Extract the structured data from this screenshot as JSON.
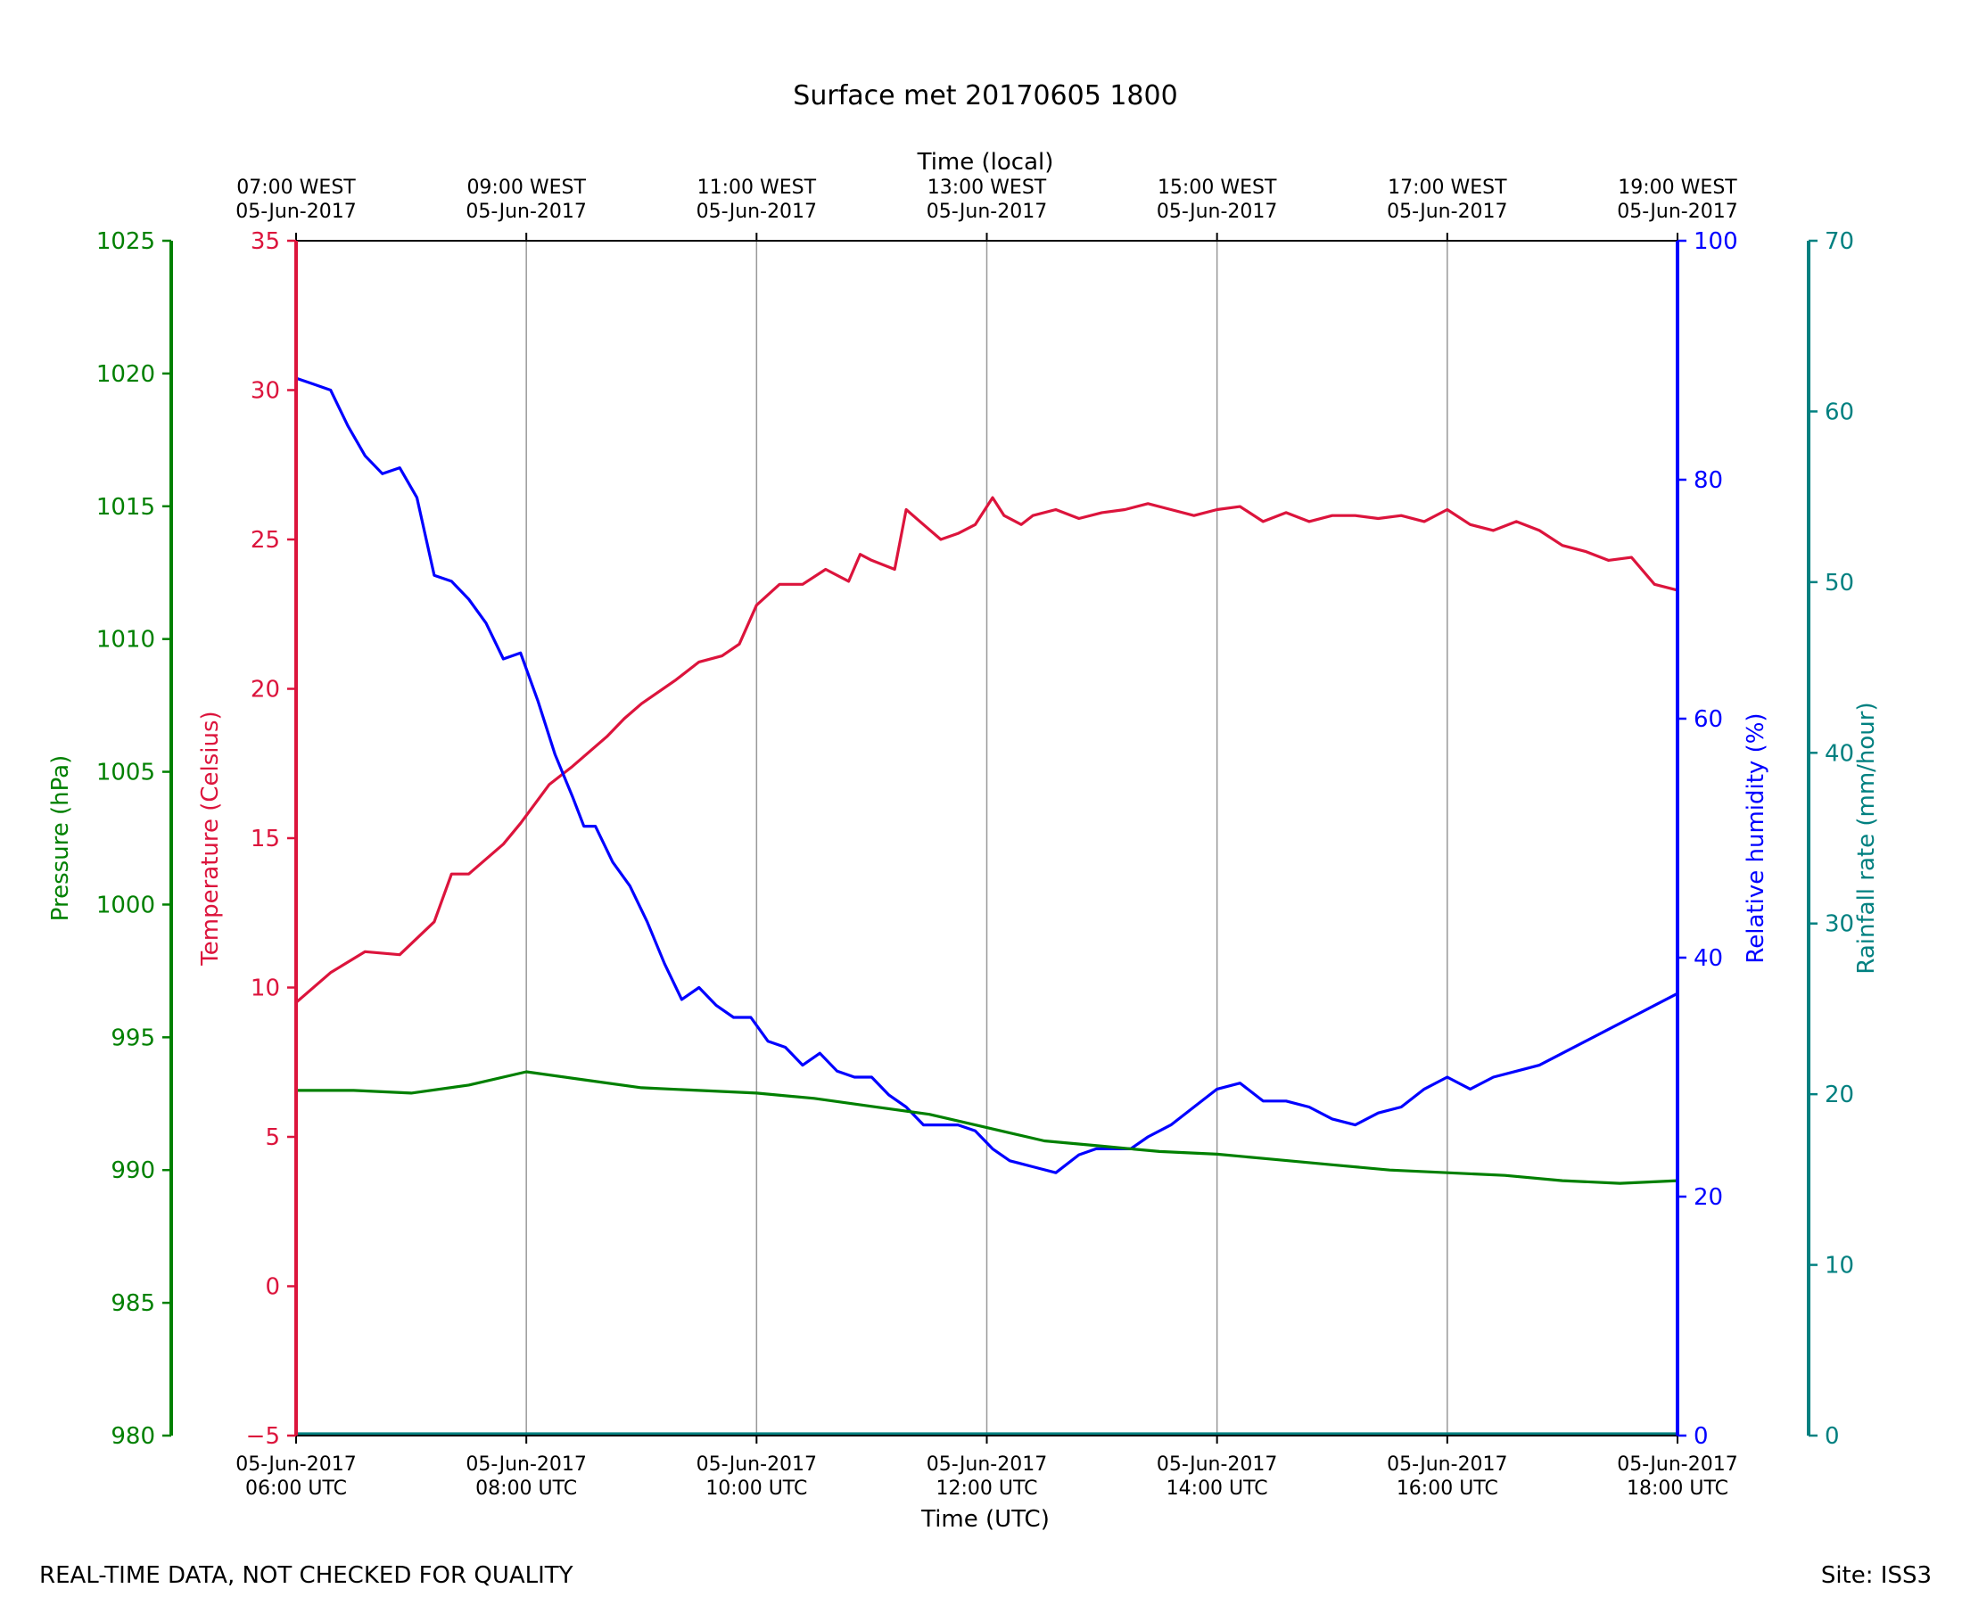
{
  "footer": {
    "quality_note": "REAL-TIME DATA, NOT CHECKED FOR QUALITY",
    "site": "Site: ISS3"
  },
  "colors": {
    "temperature": "#dc143c",
    "humidity": "#0000ff",
    "pressure": "#008000",
    "rainfall": "#008080",
    "grid": "#999999",
    "frame": "#000000"
  },
  "chart_data": {
    "type": "line",
    "title": "Surface met 20170605 1800",
    "xlabel": "Time (UTC)",
    "x2label": "Time (local)",
    "x_range_hours_utc": [
      6,
      18
    ],
    "x_ticks": [
      {
        "hour": 6,
        "date": "05-Jun-2017",
        "utc": "06:00 UTC",
        "local": "07:00 WEST"
      },
      {
        "hour": 8,
        "date": "05-Jun-2017",
        "utc": "08:00 UTC",
        "local": "09:00 WEST"
      },
      {
        "hour": 10,
        "date": "05-Jun-2017",
        "utc": "10:00 UTC",
        "local": "11:00 WEST"
      },
      {
        "hour": 12,
        "date": "05-Jun-2017",
        "utc": "12:00 UTC",
        "local": "13:00 WEST"
      },
      {
        "hour": 14,
        "date": "05-Jun-2017",
        "utc": "14:00 UTC",
        "local": "15:00 WEST"
      },
      {
        "hour": 16,
        "date": "05-Jun-2017",
        "utc": "16:00 UTC",
        "local": "17:00 WEST"
      },
      {
        "hour": 18,
        "date": "05-Jun-2017",
        "utc": "18:00 UTC",
        "local": "19:00 WEST"
      }
    ],
    "grid": "vertical",
    "axes": {
      "pressure": {
        "label": "Pressure (hPa)",
        "range": [
          980,
          1025
        ],
        "ticks": [
          "980",
          "985",
          "990",
          "995",
          "1000",
          "1005",
          "1010",
          "1015",
          "1020",
          "1025"
        ],
        "side": "far-left"
      },
      "temperature": {
        "label": "Temperature (Celsius)",
        "range": [
          -5,
          35
        ],
        "ticks": [
          "−5",
          "0",
          "5",
          "10",
          "15",
          "20",
          "25",
          "30",
          "35"
        ],
        "side": "left"
      },
      "humidity": {
        "label": "Relative humidity (%)",
        "range": [
          0,
          100
        ],
        "ticks": [
          "0",
          "20",
          "40",
          "60",
          "80",
          "100"
        ],
        "side": "right"
      },
      "rainfall": {
        "label": "Rainfall rate (mm/hour)",
        "range": [
          0,
          70
        ],
        "ticks": [
          "0",
          "10",
          "20",
          "30",
          "40",
          "50",
          "60",
          "70"
        ],
        "side": "far-right"
      }
    },
    "series": [
      {
        "name": "Temperature",
        "axis": "temperature",
        "x": [
          6.0,
          6.3,
          6.6,
          6.9,
          7.2,
          7.35,
          7.5,
          7.8,
          7.95,
          8.2,
          8.4,
          8.7,
          8.85,
          9.0,
          9.3,
          9.5,
          9.7,
          9.85,
          10.0,
          10.2,
          10.4,
          10.6,
          10.8,
          10.9,
          11.0,
          11.2,
          11.3,
          11.45,
          11.6,
          11.75,
          11.9,
          12.05,
          12.15,
          12.3,
          12.4,
          12.6,
          12.8,
          13.0,
          13.2,
          13.4,
          13.6,
          13.8,
          14.0,
          14.2,
          14.4,
          14.6,
          14.8,
          15.0,
          15.2,
          15.4,
          15.6,
          15.8,
          16.0,
          16.2,
          16.4,
          16.6,
          16.8,
          17.0,
          17.2,
          17.4,
          17.6,
          17.8,
          18.0
        ],
        "values": [
          9.5,
          10.5,
          11.2,
          11.1,
          12.2,
          13.8,
          13.8,
          14.8,
          15.5,
          16.8,
          17.4,
          18.4,
          19.0,
          19.5,
          20.3,
          20.9,
          21.1,
          21.5,
          22.8,
          23.5,
          23.5,
          24.0,
          23.6,
          24.5,
          24.3,
          24.0,
          26.0,
          25.5,
          25.0,
          25.2,
          25.5,
          26.4,
          25.8,
          25.5,
          25.8,
          26.0,
          25.7,
          25.9,
          26.0,
          26.2,
          26.0,
          25.8,
          26.0,
          26.1,
          25.6,
          25.9,
          25.6,
          25.8,
          25.8,
          25.7,
          25.8,
          25.6,
          26.0,
          25.5,
          25.3,
          25.6,
          25.3,
          24.8,
          24.6,
          24.3,
          24.4,
          23.5,
          23.3
        ]
      },
      {
        "name": "Relative humidity",
        "axis": "humidity",
        "x": [
          6.0,
          6.15,
          6.3,
          6.45,
          6.6,
          6.75,
          6.9,
          7.05,
          7.2,
          7.35,
          7.5,
          7.65,
          7.8,
          7.95,
          8.1,
          8.25,
          8.4,
          8.5,
          8.6,
          8.75,
          8.9,
          9.05,
          9.2,
          9.35,
          9.5,
          9.65,
          9.8,
          9.95,
          10.1,
          10.25,
          10.4,
          10.55,
          10.7,
          10.85,
          11.0,
          11.15,
          11.3,
          11.45,
          11.6,
          11.75,
          11.9,
          12.05,
          12.2,
          12.4,
          12.6,
          12.8,
          12.95,
          13.1,
          13.25,
          13.4,
          13.6,
          13.8,
          14.0,
          14.2,
          14.4,
          14.6,
          14.8,
          15.0,
          15.2,
          15.4,
          15.6,
          15.8,
          16.0,
          16.2,
          16.4,
          16.6,
          16.8,
          17.0,
          17.2,
          17.4,
          17.6,
          17.8,
          18.0
        ],
        "values": [
          88.5,
          88.0,
          87.5,
          84.5,
          82.0,
          80.5,
          81.0,
          78.5,
          72.0,
          71.5,
          70.0,
          68.0,
          65.0,
          65.5,
          61.5,
          57.0,
          53.5,
          51.0,
          51.0,
          48.0,
          46.0,
          43.0,
          39.5,
          36.5,
          37.5,
          36.0,
          35.0,
          35.0,
          33.0,
          32.5,
          31.0,
          32.0,
          30.5,
          30.0,
          30.0,
          28.5,
          27.5,
          26.0,
          26.0,
          26.0,
          25.5,
          24.0,
          23.0,
          22.5,
          22.0,
          23.5,
          24.0,
          24.0,
          24.0,
          25.0,
          26.0,
          27.5,
          29.0,
          29.5,
          28.0,
          28.0,
          27.5,
          26.5,
          26.0,
          27.0,
          27.5,
          29.0,
          30.0,
          29.0,
          30.0,
          30.5,
          31.0,
          32.0,
          33.0,
          34.0,
          35.0,
          36.0,
          37.0
        ]
      },
      {
        "name": "Pressure",
        "axis": "pressure",
        "x": [
          6.0,
          6.5,
          7.0,
          7.5,
          8.0,
          8.5,
          9.0,
          9.5,
          10.0,
          10.5,
          11.0,
          11.5,
          12.0,
          12.5,
          13.0,
          13.5,
          14.0,
          14.5,
          15.0,
          15.5,
          16.0,
          16.5,
          17.0,
          17.5,
          18.0
        ],
        "values": [
          993.0,
          993.0,
          992.9,
          993.2,
          993.7,
          993.4,
          993.1,
          993.0,
          992.9,
          992.7,
          992.4,
          992.1,
          991.6,
          991.1,
          990.9,
          990.7,
          990.6,
          990.4,
          990.2,
          990.0,
          989.9,
          989.8,
          989.6,
          989.5,
          989.6
        ]
      },
      {
        "name": "Rainfall rate",
        "axis": "rainfall",
        "x": [
          6.0,
          18.0
        ],
        "values": [
          0.0,
          0.0
        ]
      }
    ]
  }
}
